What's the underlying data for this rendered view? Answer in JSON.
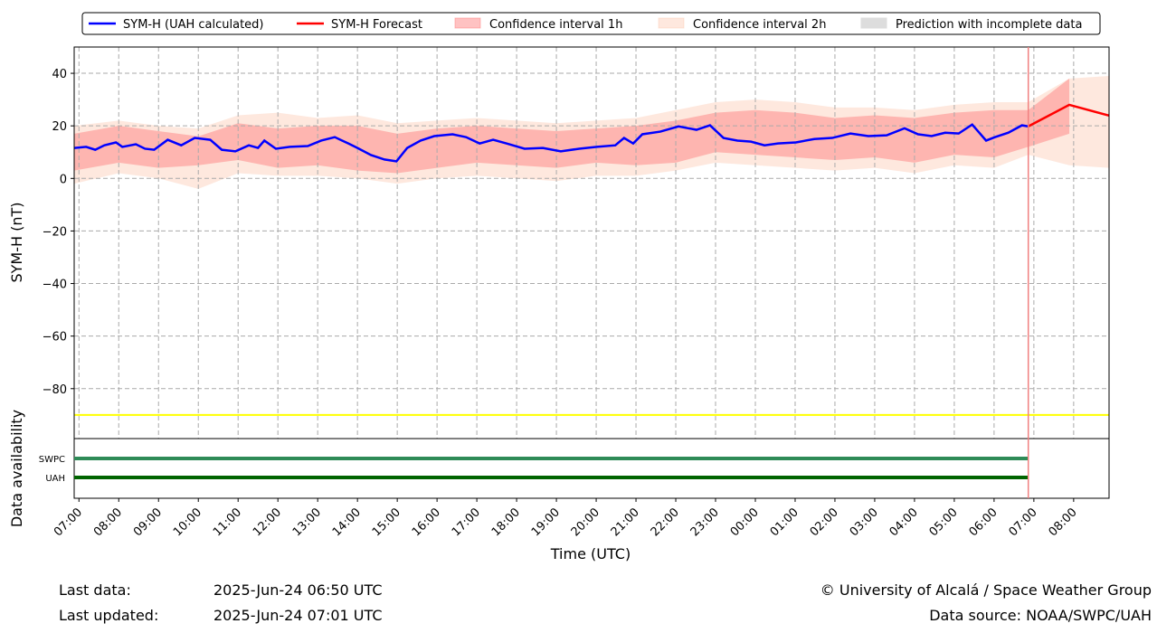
{
  "chart_data": {
    "type": "line",
    "y_label": "SYM-H (nT)",
    "x_label": "Time (UTC)",
    "availability_label": "Data availability",
    "xlim": [
      -0.12,
      25.89
    ],
    "ylim": [
      -99,
      50
    ],
    "xticks": [
      {
        "value": 0,
        "label": "07:00"
      },
      {
        "value": 1,
        "label": "08:00"
      },
      {
        "value": 2,
        "label": "09:00"
      },
      {
        "value": 3,
        "label": "10:00"
      },
      {
        "value": 4,
        "label": "11:00"
      },
      {
        "value": 5,
        "label": "12:00"
      },
      {
        "value": 6,
        "label": "13:00"
      },
      {
        "value": 7,
        "label": "14:00"
      },
      {
        "value": 8,
        "label": "15:00"
      },
      {
        "value": 9,
        "label": "16:00"
      },
      {
        "value": 10,
        "label": "17:00"
      },
      {
        "value": 11,
        "label": "18:00"
      },
      {
        "value": 12,
        "label": "19:00"
      },
      {
        "value": 13,
        "label": "20:00"
      },
      {
        "value": 14,
        "label": "21:00"
      },
      {
        "value": 15,
        "label": "22:00"
      },
      {
        "value": 16,
        "label": "23:00"
      },
      {
        "value": 17,
        "label": "00:00"
      },
      {
        "value": 18,
        "label": "01:00"
      },
      {
        "value": 19,
        "label": "02:00"
      },
      {
        "value": 20,
        "label": "03:00"
      },
      {
        "value": 21,
        "label": "04:00"
      },
      {
        "value": 22,
        "label": "05:00"
      },
      {
        "value": 23,
        "label": "06:00"
      },
      {
        "value": 24,
        "label": "07:00"
      },
      {
        "value": 25,
        "label": "08:00"
      }
    ],
    "yticks": [
      40,
      20,
      0,
      {
        "value": -20,
        "label": "−20"
      },
      {
        "value": -40,
        "label": "−40"
      },
      {
        "value": -60,
        "label": "−60"
      },
      {
        "value": -80,
        "label": "−80"
      }
    ],
    "grid": true,
    "series": [
      {
        "name": "SYM-H (UAH calculated)",
        "color": "#0000ff",
        "x": [
          -0.11,
          0.18,
          0.41,
          0.64,
          0.93,
          1.09,
          1.43,
          1.66,
          1.89,
          2.23,
          2.57,
          2.91,
          3.3,
          3.59,
          3.93,
          4.27,
          4.5,
          4.66,
          4.95,
          5.3,
          5.75,
          6.09,
          6.43,
          6.77,
          7.0,
          7.34,
          7.68,
          7.98,
          8.25,
          8.59,
          8.93,
          9.39,
          9.73,
          10.07,
          10.41,
          10.75,
          11.2,
          11.66,
          12.11,
          12.57,
          13.02,
          13.48,
          13.7,
          13.93,
          14.16,
          14.61,
          15.07,
          15.52,
          15.86,
          16.2,
          16.55,
          16.89,
          17.23,
          17.57,
          18.02,
          18.48,
          18.93,
          19.39,
          19.84,
          20.3,
          20.75,
          21.09,
          21.43,
          21.77,
          22.11,
          22.45,
          22.8,
          23.02,
          23.36,
          23.7,
          23.86
        ],
        "values": [
          11.6,
          12.0,
          10.9,
          12.6,
          13.7,
          12.0,
          13.0,
          11.3,
          10.9,
          14.7,
          12.6,
          15.4,
          14.7,
          10.9,
          10.3,
          12.6,
          11.6,
          14.4,
          11.3,
          12.0,
          12.3,
          14.4,
          15.7,
          13.3,
          11.6,
          8.9,
          7.2,
          6.5,
          11.6,
          14.4,
          16.1,
          16.8,
          15.7,
          13.3,
          14.7,
          13.3,
          11.3,
          11.6,
          10.3,
          11.3,
          12.0,
          12.6,
          15.4,
          13.3,
          16.8,
          17.8,
          19.8,
          18.5,
          20.2,
          15.4,
          14.4,
          14.0,
          12.6,
          13.3,
          13.7,
          15.0,
          15.4,
          17.1,
          16.1,
          16.4,
          19.1,
          16.8,
          16.1,
          17.4,
          17.1,
          20.5,
          14.4,
          15.7,
          17.4,
          20.2,
          19.8
        ]
      },
      {
        "name": "SYM-H Forecast",
        "color": "#ff0000",
        "x": [
          23.86,
          24.89,
          25.89
        ],
        "values": [
          19.8,
          28.0,
          23.9
        ]
      }
    ],
    "bands": [
      {
        "name": "Confidence interval 2h",
        "color": "rgba(252,190,160,0.35)",
        "x": [
          -0.12,
          1,
          2,
          3,
          4,
          5,
          6,
          7,
          8,
          9,
          10,
          11,
          12,
          13,
          14,
          15,
          16,
          17,
          18,
          19,
          20,
          21,
          22,
          23,
          23.86,
          24.89,
          25.89
        ],
        "upper": [
          20,
          22,
          20,
          19,
          24,
          25,
          23,
          24,
          21,
          22,
          23,
          22,
          21,
          22,
          23,
          26,
          29,
          30,
          29,
          27,
          27,
          26,
          28,
          29,
          29,
          38,
          39
        ],
        "lower": [
          -2,
          2,
          0,
          -4,
          2,
          1,
          1,
          0,
          -2,
          0,
          1,
          0,
          -1,
          1,
          1,
          3,
          6,
          5,
          4,
          3,
          4,
          2,
          5,
          4,
          9,
          5,
          4
        ]
      },
      {
        "name": "Confidence interval 1h",
        "color": "rgba(255,120,120,0.45)",
        "x": [
          -0.12,
          1,
          2,
          3,
          4,
          5,
          6,
          7,
          8,
          9,
          10,
          11,
          12,
          13,
          14,
          15,
          16,
          17,
          18,
          19,
          20,
          21,
          22,
          23,
          23.86,
          24.89
        ],
        "upper": [
          17,
          20,
          18,
          16,
          21,
          19,
          20,
          20,
          17,
          19,
          20,
          19,
          18,
          19,
          20,
          22,
          25,
          26,
          25,
          23,
          24,
          23,
          25,
          26,
          26,
          38
        ],
        "lower": [
          3,
          6,
          4,
          5,
          7,
          4,
          5,
          3,
          2,
          4,
          6,
          5,
          4,
          6,
          5,
          6,
          10,
          9,
          8,
          7,
          8,
          6,
          9,
          8,
          12,
          17
        ]
      }
    ],
    "incomplete": {
      "name": "Prediction with incomplete data",
      "color": "#dddddd"
    },
    "threshold": {
      "value": -90,
      "color": "#ffff00"
    },
    "now": {
      "value": 23.86,
      "color": "#f08080"
    },
    "availability": [
      {
        "label": "SWPC",
        "color": "#2e8b57",
        "x": [
          -0.12,
          23.86
        ]
      },
      {
        "label": "UAH",
        "color": "#006400",
        "x": [
          -0.12,
          23.86
        ]
      }
    ]
  },
  "footer": {
    "last_data_label": "Last data:",
    "last_data": "2025-Jun-24 06:50 UTC",
    "last_updated_label": "Last updated:",
    "last_updated": "2025-Jun-24 07:01 UTC",
    "copyright": "© University of Alcalá / Space Weather Group",
    "source": "Data source: NOAA/SWPC/UAH"
  }
}
